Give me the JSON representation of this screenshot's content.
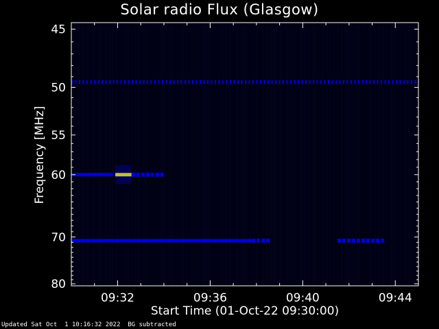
{
  "chart_data": {
    "type": "heatmap",
    "title": "Solar radio Flux (Glasgow)",
    "xlabel": "Start Time (01-Oct-22 09:30:00)",
    "ylabel": "Frequency [MHz]",
    "x_ticks": [
      "09:32",
      "09:36",
      "09:40",
      "09:44"
    ],
    "x_tick_minutes": [
      2,
      6,
      10,
      14
    ],
    "xlim_minutes": [
      0,
      15
    ],
    "y_ticks": [
      45,
      50,
      55,
      60,
      70,
      80
    ],
    "ylim": [
      44.5,
      80.5
    ],
    "y_scale": "reciprocal",
    "colormap": "dark-blue-to-red",
    "colors": {
      "background": "#000010",
      "low": "#0000ff",
      "mid": "#ff0000",
      "high": "#ffff00"
    },
    "features": [
      {
        "name": "interference-band",
        "freq_mhz": 49.5,
        "start_min": 0,
        "end_min": 15,
        "intensity": 0.45,
        "style": "dotted"
      },
      {
        "name": "interference-band",
        "freq_mhz": 60.0,
        "start_min": 0,
        "end_min": 1.8,
        "intensity": 0.55,
        "style": "solid"
      },
      {
        "name": "burst",
        "freq_mhz": 60.0,
        "start_min": 1.9,
        "end_min": 2.6,
        "intensity": 1.0,
        "style": "solid"
      },
      {
        "name": "interference-band",
        "freq_mhz": 60.0,
        "start_min": 2.6,
        "end_min": 3.9,
        "intensity": 0.5,
        "style": "dashed"
      },
      {
        "name": "interference-band",
        "freq_mhz": 70.7,
        "start_min": 0,
        "end_min": 7.8,
        "intensity": 0.6,
        "style": "solid"
      },
      {
        "name": "interference-band",
        "freq_mhz": 70.7,
        "start_min": 7.8,
        "end_min": 8.6,
        "intensity": 0.4,
        "style": "dashed"
      },
      {
        "name": "interference-band",
        "freq_mhz": 70.7,
        "start_min": 11.5,
        "end_min": 13.5,
        "intensity": 0.4,
        "style": "dashed"
      }
    ]
  },
  "footer": {
    "text": "Updated Sat Oct  1 10:16:32 2022  BG subtracted"
  }
}
